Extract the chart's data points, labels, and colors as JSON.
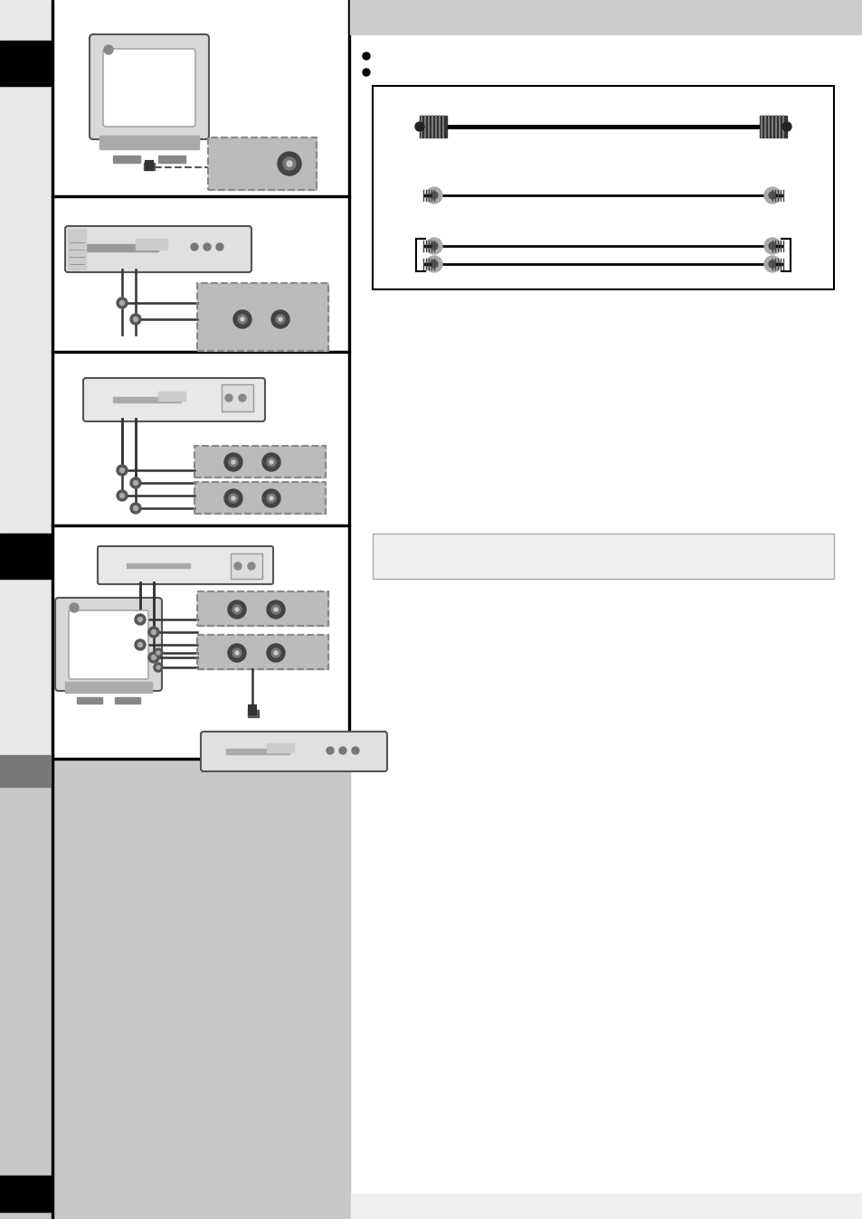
{
  "page_bg": "#ffffff",
  "black": "#000000",
  "white": "#ffffff",
  "light_gray": "#d8d8d8",
  "mid_gray": "#bbbbbb",
  "dark_gray": "#888888",
  "very_light_gray": "#eeeeee",
  "header_bg": "#cccccc",
  "bottom_bg": "#c8c8c8"
}
